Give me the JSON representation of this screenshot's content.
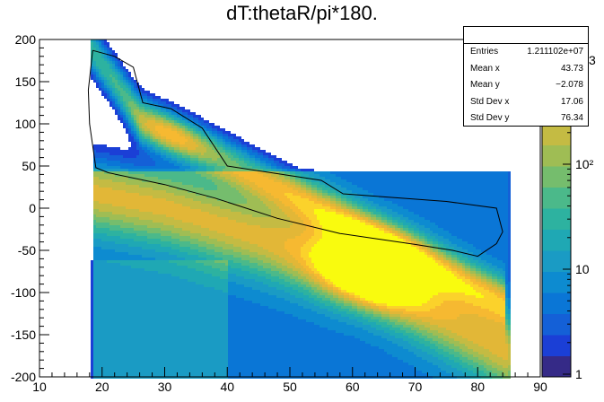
{
  "chart_data": {
    "type": "heatmap",
    "title": "dT:thetaR/pi*180.",
    "xlabel": "",
    "ylabel": "",
    "xlim": [
      10,
      90
    ],
    "ylim": [
      -200,
      200
    ],
    "x_ticks": [
      "10",
      "20",
      "30",
      "40",
      "50",
      "60",
      "70",
      "80",
      "90"
    ],
    "y_ticks": [
      "200",
      "150",
      "100",
      "50",
      "0",
      "-50",
      "-100",
      "-150",
      "-200"
    ],
    "z_scale": "log",
    "z_ticks": [
      "1",
      "10",
      "10²"
    ],
    "z_exponent_label": "3",
    "palette": [
      "#352a87",
      "#1b3fd6",
      "#1460d7",
      "#0a76d6",
      "#0d8bd0",
      "#1a9bc4",
      "#1fa8b4",
      "#2db2a0",
      "#4bb98a",
      "#75bd6d",
      "#9fbd54",
      "#c4bb43",
      "#e2b737",
      "#f6b931",
      "#fbd22b",
      "#f9fb0e"
    ],
    "cut_polygon": [
      [
        18.5,
        187
      ],
      [
        22,
        180
      ],
      [
        25,
        167
      ],
      [
        26.5,
        125
      ],
      [
        31,
        118
      ],
      [
        36,
        95
      ],
      [
        40,
        50
      ],
      [
        55,
        33
      ],
      [
        58.5,
        17
      ],
      [
        75,
        8
      ],
      [
        83,
        0
      ],
      [
        84,
        -28
      ],
      [
        83,
        -42
      ],
      [
        80,
        -57
      ],
      [
        76,
        -50
      ],
      [
        70,
        -43
      ],
      [
        58,
        -30
      ],
      [
        48,
        -12
      ],
      [
        38,
        12
      ],
      [
        30,
        28
      ],
      [
        21,
        42
      ],
      [
        19,
        48
      ],
      [
        18,
        100
      ],
      [
        17.8,
        140
      ],
      [
        18.5,
        187
      ]
    ],
    "cut_polygon_color": "#000000",
    "grid": false
  },
  "stats": {
    "entries_label": "Entries",
    "entries_value": "1.211102e+07",
    "mean_x_label": "Mean x",
    "mean_x_value": "43.73",
    "mean_y_label": "Mean y",
    "mean_y_value": "−2.078",
    "std_x_label": "Std Dev x",
    "std_x_value": "17.06",
    "std_y_label": "Std Dev y",
    "std_y_value": "76.34"
  }
}
